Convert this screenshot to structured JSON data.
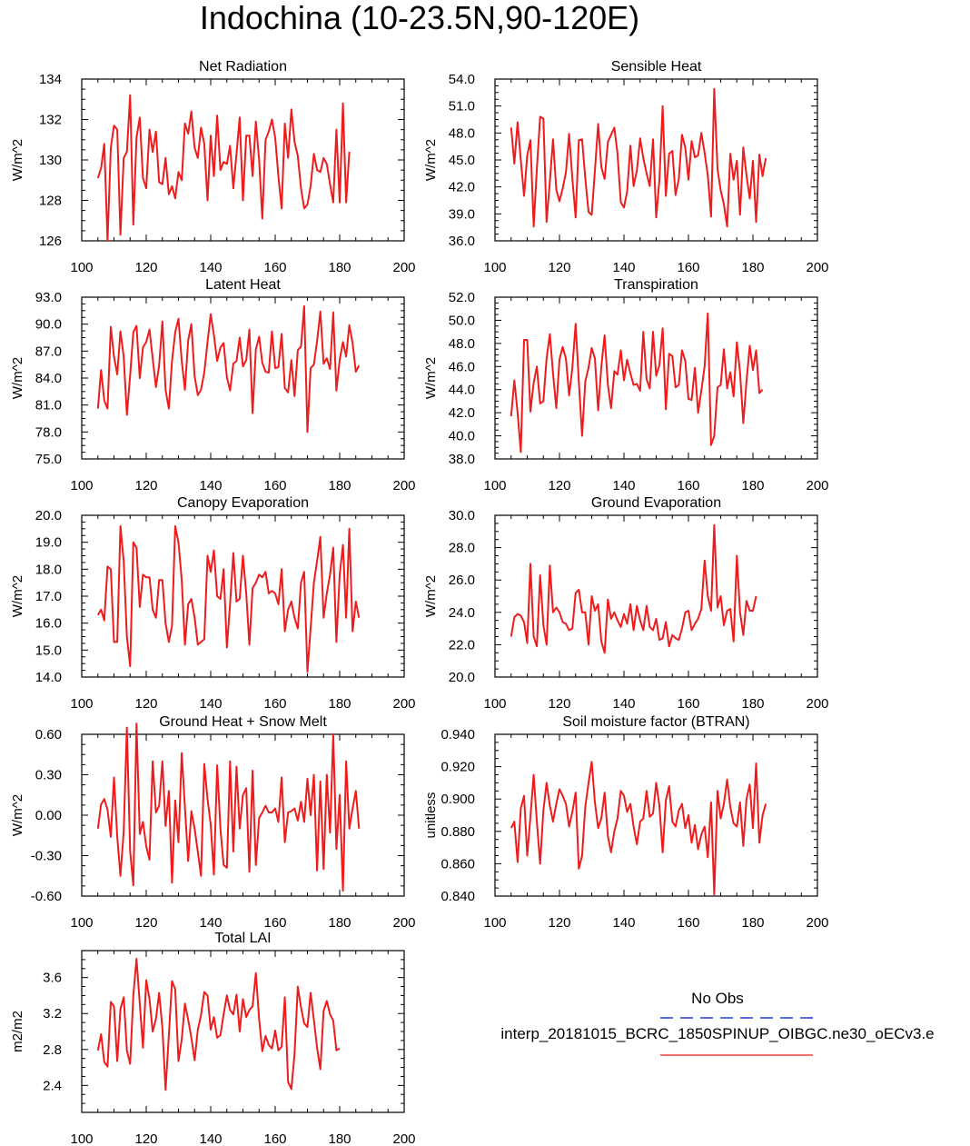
{
  "title": "Indochina (10-23.5N,90-120E)",
  "legend": {
    "obs_label": "No Obs",
    "obs_color": "#1f3fd6",
    "model_label": "interp_20181015_BCRC_1850SPINUP_OIBGC.ne30_oECv3.e",
    "model_color": "#ee1c1c"
  },
  "chart_data": [
    {
      "type": "line",
      "title": "Net Radiation",
      "ylabel": "W/m^2",
      "xlim": [
        100,
        200
      ],
      "xticks": [
        "100",
        "120",
        "140",
        "160",
        "180",
        "200"
      ],
      "ylim": [
        126,
        134
      ],
      "yticks": [
        "126",
        "128",
        "130",
        "132",
        "134"
      ],
      "x_start": 105,
      "values": [
        129.1,
        129.6,
        130.8,
        126.0,
        130.6,
        131.7,
        131.5,
        126.3,
        130.1,
        130.4,
        133.2,
        126.8,
        131.1,
        132.1,
        129.1,
        128.6,
        131.5,
        130.4,
        131.4,
        128.9,
        128.8,
        130.1,
        128.3,
        128.7,
        128.1,
        129.4,
        129.0,
        131.8,
        131.3,
        132.4,
        130.6,
        130.1,
        131.6,
        130.8,
        128.0,
        131.2,
        129.2,
        132.2,
        129.5,
        129.9,
        129.8,
        130.7,
        128.6,
        130.3,
        132.1,
        128.0,
        131.2,
        131.2,
        129.2,
        131.9,
        130.0,
        127.1,
        131.0,
        131.4,
        132.0,
        131.1,
        129.2,
        127.6,
        131.8,
        130.1,
        132.5,
        130.9,
        130.2,
        128.6,
        127.6,
        127.8,
        128.7,
        130.3,
        129.5,
        129.4,
        130.1,
        129.8,
        128.8,
        127.9,
        131.5,
        127.9,
        132.8,
        127.9,
        130.4
      ]
    },
    {
      "type": "line",
      "title": "Sensible Heat",
      "ylabel": "W/m^2",
      "xlim": [
        100,
        200
      ],
      "xticks": [
        "100",
        "120",
        "140",
        "160",
        "180",
        "200"
      ],
      "ylim": [
        36,
        54
      ],
      "yticks": [
        "36.0",
        "39.0",
        "42.0",
        "45.0",
        "48.0",
        "51.0",
        "54.0"
      ],
      "x_start": 105,
      "values": [
        48.6,
        44.6,
        49.2,
        45.0,
        41.0,
        45.5,
        47.2,
        37.6,
        44.0,
        49.8,
        49.6,
        38.1,
        42.6,
        47.3,
        41.7,
        40.4,
        41.8,
        43.6,
        47.9,
        42.9,
        38.6,
        47.2,
        47.3,
        43.0,
        39.2,
        38.9,
        43.8,
        49.0,
        44.2,
        42.9,
        47.0,
        47.8,
        48.6,
        45.7,
        40.3,
        39.7,
        41.5,
        46.6,
        42.1,
        43.8,
        47.4,
        45.2,
        43.5,
        42.1,
        47.3,
        38.6,
        42.7,
        51.0,
        41.0,
        45.7,
        46.0,
        41.1,
        42.9,
        47.8,
        46.4,
        42.8,
        47.1,
        45.3,
        45.5,
        48.0,
        45.8,
        43.3,
        38.7,
        52.9,
        44.0,
        41.6,
        40.1,
        37.6,
        45.7,
        42.8,
        44.9,
        38.9,
        46.4,
        43.3,
        40.7,
        44.9,
        38.1,
        45.6,
        43.2,
        45.2
      ]
    },
    {
      "type": "line",
      "title": "Latent Heat",
      "ylabel": "W/m^2",
      "xlim": [
        100,
        200
      ],
      "xticks": [
        "100",
        "120",
        "140",
        "160",
        "180",
        "200"
      ],
      "ylim": [
        75,
        93
      ],
      "yticks": [
        "75.0",
        "78.0",
        "81.0",
        "84.0",
        "87.0",
        "90.0",
        "93.0"
      ],
      "x_start": 105,
      "values": [
        80.6,
        84.9,
        81.5,
        80.6,
        89.7,
        86.4,
        84.4,
        89.2,
        86.4,
        79.9,
        84.3,
        89.1,
        89.8,
        84.0,
        87.4,
        88.0,
        89.4,
        86.2,
        83.0,
        85.4,
        90.3,
        82.7,
        80.6,
        85.9,
        89.1,
        90.6,
        85.9,
        82.7,
        88.2,
        90.0,
        84.2,
        82.1,
        82.7,
        84.6,
        88.0,
        91.1,
        88.8,
        85.9,
        87.4,
        87.9,
        84.1,
        82.6,
        85.6,
        85.9,
        88.5,
        85.3,
        86.0,
        89.4,
        80.1,
        87.2,
        88.6,
        85.7,
        84.7,
        84.6,
        89.2,
        85.1,
        85.2,
        88.9,
        82.9,
        82.4,
        86.0,
        82.0,
        87.1,
        87.5,
        92.0,
        78.0,
        85.1,
        85.5,
        88.1,
        91.4,
        85.6,
        86.2,
        85.0,
        91.3,
        82.6,
        86.0,
        88.0,
        86.4,
        89.9,
        87.9,
        84.7,
        85.4
      ]
    },
    {
      "type": "line",
      "title": "Transpiration",
      "ylabel": "W/m^2",
      "xlim": [
        100,
        200
      ],
      "xticks": [
        "100",
        "120",
        "140",
        "160",
        "180",
        "200"
      ],
      "ylim": [
        38,
        52
      ],
      "yticks": [
        "38.0",
        "40.0",
        "42.0",
        "44.0",
        "46.0",
        "48.0",
        "50.0",
        "52.0"
      ],
      "x_start": 105,
      "values": [
        41.7,
        44.8,
        42.0,
        38.6,
        48.3,
        48.3,
        42.1,
        44.6,
        46.0,
        42.8,
        43.0,
        46.7,
        48.8,
        45.4,
        42.4,
        46.6,
        47.7,
        46.7,
        43.5,
        45.9,
        49.7,
        44.7,
        40.0,
        44.7,
        45.9,
        47.6,
        46.7,
        42.2,
        46.0,
        48.7,
        44.4,
        42.4,
        45.6,
        45.3,
        47.4,
        44.8,
        46.6,
        45.4,
        44.4,
        44.5,
        43.9,
        49.0,
        44.9,
        44.1,
        49.0,
        45.2,
        46.1,
        49.3,
        42.3,
        47.1,
        46.9,
        44.2,
        44.4,
        47.4,
        46.5,
        43.2,
        43.1,
        45.9,
        42.0,
        43.9,
        46.0,
        50.6,
        39.2,
        40.0,
        44.2,
        44.4,
        47.5,
        44.1,
        45.5,
        43.4,
        48.1,
        45.5,
        41.1,
        44.7,
        47.8,
        45.7,
        47.4,
        43.7,
        44.0
      ]
    },
    {
      "type": "line",
      "title": "Canopy Evaporation",
      "ylabel": "W/m^2",
      "xlim": [
        100,
        200
      ],
      "xticks": [
        "100",
        "120",
        "140",
        "160",
        "180",
        "200"
      ],
      "ylim": [
        14,
        20
      ],
      "yticks": [
        "14.0",
        "15.0",
        "16.0",
        "17.0",
        "18.0",
        "19.0",
        "20.0"
      ],
      "x_start": 105,
      "values": [
        16.3,
        16.5,
        16.1,
        18.1,
        18.0,
        15.3,
        15.3,
        19.6,
        18.3,
        15.5,
        14.4,
        19.0,
        18.8,
        16.6,
        17.8,
        17.7,
        17.7,
        16.5,
        16.2,
        17.6,
        17.6,
        16.0,
        15.3,
        15.9,
        19.6,
        19.0,
        17.6,
        15.2,
        16.7,
        16.9,
        16.2,
        15.2,
        15.3,
        15.4,
        18.5,
        17.9,
        18.7,
        17.0,
        16.9,
        18.0,
        15.1,
        16.7,
        18.6,
        16.8,
        16.9,
        18.5,
        17.1,
        15.2,
        17.3,
        17.5,
        17.8,
        17.7,
        17.9,
        17.1,
        17.2,
        17.1,
        16.7,
        18.0,
        15.7,
        16.5,
        16.8,
        16.2,
        15.8,
        17.5,
        17.9,
        14.2,
        15.8,
        17.5,
        18.3,
        19.2,
        16.2,
        17.1,
        17.8,
        18.8,
        15.3,
        17.8,
        18.9,
        16.2,
        19.5,
        15.7,
        16.8,
        16.2
      ]
    },
    {
      "type": "line",
      "title": "Ground Evaporation",
      "ylabel": "W/m^2",
      "xlim": [
        100,
        200
      ],
      "xticks": [
        "100",
        "120",
        "140",
        "160",
        "180",
        "200"
      ],
      "ylim": [
        20,
        30
      ],
      "yticks": [
        "20.0",
        "22.0",
        "24.0",
        "26.0",
        "28.0",
        "30.0"
      ],
      "x_start": 105,
      "values": [
        22.5,
        23.7,
        23.9,
        23.8,
        23.4,
        22.1,
        27.0,
        22.5,
        21.9,
        26.3,
        23.2,
        22.0,
        26.9,
        24.0,
        24.3,
        24.0,
        23.4,
        23.3,
        22.9,
        23.0,
        25.2,
        25.4,
        24.0,
        24.0,
        22.0,
        25.0,
        24.1,
        24.5,
        22.2,
        21.5,
        24.8,
        23.6,
        24.0,
        23.5,
        23.1,
        23.9,
        23.3,
        24.5,
        22.9,
        24.4,
        23.5,
        22.9,
        24.4,
        23.1,
        22.9,
        23.6,
        22.3,
        22.4,
        23.4,
        21.9,
        22.6,
        22.4,
        22.3,
        23.0,
        24.0,
        24.1,
        22.9,
        23.3,
        23.6,
        24.2,
        27.2,
        25.0,
        24.1,
        29.4,
        24.3,
        25.0,
        23.2,
        24.1,
        24.2,
        22.2,
        27.5,
        24.0,
        22.6,
        24.7,
        24.1,
        24.1,
        25.0
      ]
    },
    {
      "type": "line",
      "title": "Ground Heat + Snow Melt",
      "ylabel": "W/m^2",
      "xlim": [
        100,
        200
      ],
      "xticks": [
        "100",
        "120",
        "140",
        "160",
        "180",
        "200"
      ],
      "ylim": [
        -0.6,
        0.6
      ],
      "yticks": [
        "-0.60",
        "-0.30",
        "0.00",
        "0.30",
        "0.60"
      ],
      "x_start": 105,
      "values": [
        -0.1,
        0.08,
        0.12,
        0.04,
        -0.16,
        0.28,
        -0.16,
        -0.45,
        -0.12,
        0.65,
        -0.27,
        -0.52,
        0.68,
        -0.14,
        -0.05,
        -0.23,
        -0.33,
        0.4,
        0.02,
        0.07,
        0.4,
        -0.08,
        0.18,
        -0.5,
        0.11,
        -0.2,
        0.46,
        0.06,
        -0.34,
        0.03,
        -0.1,
        -0.27,
        -0.45,
        0.38,
        0.12,
        -0.07,
        -0.44,
        0.37,
        -0.1,
        -0.37,
        -0.39,
        0.4,
        -0.27,
        0.36,
        -0.1,
        0.15,
        0.2,
        -0.42,
        0.33,
        -0.37,
        -0.02,
        0.02,
        0.07,
        0.02,
        0.02,
        0.05,
        -0.05,
        0.28,
        -0.2,
        0.02,
        0.03,
        0.05,
        -0.04,
        0.1,
        -0.05,
        0.27,
        0.0,
        0.3,
        -0.41,
        0.25,
        -0.4,
        0.3,
        -0.13,
        0.6,
        -0.25,
        0.15,
        -0.56,
        0.4,
        -0.1,
        0.05,
        0.18,
        -0.1
      ]
    },
    {
      "type": "line",
      "title": "Soil moisture factor (BTRAN)",
      "ylabel": "unitless",
      "xlim": [
        100,
        200
      ],
      "xticks": [
        "100",
        "120",
        "140",
        "160",
        "180",
        "200"
      ],
      "ylim": [
        0.84,
        0.94
      ],
      "yticks": [
        "0.840",
        "0.860",
        "0.880",
        "0.900",
        "0.920",
        "0.940"
      ],
      "x_start": 105,
      "values": [
        0.882,
        0.886,
        0.861,
        0.894,
        0.902,
        0.865,
        0.889,
        0.915,
        0.886,
        0.86,
        0.893,
        0.91,
        0.896,
        0.886,
        0.897,
        0.906,
        0.902,
        0.897,
        0.883,
        0.892,
        0.904,
        0.857,
        0.865,
        0.895,
        0.91,
        0.923,
        0.898,
        0.882,
        0.888,
        0.904,
        0.877,
        0.867,
        0.88,
        0.888,
        0.905,
        0.902,
        0.892,
        0.897,
        0.883,
        0.872,
        0.886,
        0.888,
        0.905,
        0.889,
        0.891,
        0.91,
        0.896,
        0.867,
        0.899,
        0.908,
        0.886,
        0.883,
        0.893,
        0.897,
        0.882,
        0.89,
        0.873,
        0.884,
        0.869,
        0.878,
        0.883,
        0.864,
        0.898,
        0.841,
        0.905,
        0.888,
        0.897,
        0.912,
        0.895,
        0.885,
        0.883,
        0.898,
        0.871,
        0.9,
        0.909,
        0.882,
        0.922,
        0.873,
        0.89,
        0.897
      ]
    },
    {
      "type": "line",
      "title": "Total LAI",
      "ylabel": "m2/m2",
      "xlim": [
        100,
        200
      ],
      "xticks": [
        "100",
        "120",
        "140",
        "160",
        "180",
        "200"
      ],
      "ylim": [
        2.1,
        3.9
      ],
      "yticks": [
        "2.4",
        "2.8",
        "3.2",
        "3.6"
      ],
      "x_start": 105,
      "values": [
        2.79,
        2.97,
        2.66,
        2.61,
        3.33,
        3.28,
        2.67,
        3.25,
        3.38,
        2.79,
        2.64,
        3.4,
        3.81,
        3.31,
        2.82,
        3.57,
        3.36,
        3.0,
        3.14,
        3.43,
        3.04,
        2.35,
        2.96,
        3.56,
        3.47,
        2.67,
        2.91,
        3.31,
        3.13,
        2.93,
        2.68,
        3.02,
        3.18,
        3.44,
        3.4,
        3.02,
        3.16,
        2.93,
        2.96,
        3.19,
        3.4,
        3.24,
        3.19,
        3.41,
        3.0,
        3.36,
        3.16,
        3.24,
        3.28,
        3.65,
        3.14,
        2.78,
        2.95,
        2.85,
        2.81,
        3.01,
        2.79,
        2.83,
        3.38,
        2.44,
        2.36,
        2.75,
        3.5,
        3.27,
        3.09,
        3.05,
        3.43,
        3.13,
        2.82,
        2.58,
        3.23,
        3.34,
        3.19,
        3.12,
        2.79,
        2.81
      ]
    }
  ]
}
